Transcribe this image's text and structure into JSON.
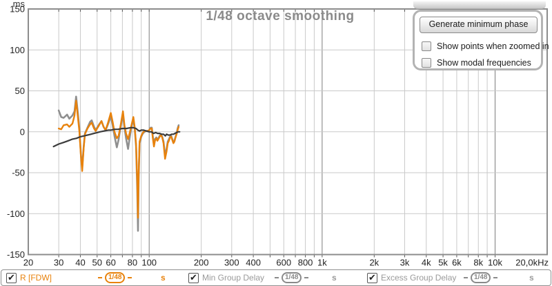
{
  "title": "1/48 octave smoothing",
  "panel": {
    "button_label": "Generate minimum phase",
    "checkboxes": [
      {
        "label": "Show points when zoomed in",
        "checked": false
      },
      {
        "label": "Show modal frequencies",
        "checked": false
      }
    ]
  },
  "legend": {
    "items": [
      {
        "label": "R [FDW]",
        "badge": "1/48",
        "suffix": "s",
        "color": "#E8820C",
        "checked": true
      },
      {
        "label": "Min Group Delay",
        "badge": "1/48",
        "suffix": "s",
        "color": "#9a9a9a",
        "checked": true
      },
      {
        "label": "Excess Group Delay",
        "badge": "1/48",
        "suffix": "s",
        "color": "#9a9a9a",
        "checked": true
      }
    ]
  },
  "chart_data": {
    "type": "line",
    "title": "1/48 octave smoothing",
    "x_axis": {
      "scale": "log",
      "unit": "Hz",
      "min": 20,
      "max": 20000,
      "tick_labels": [
        [
          20,
          "20"
        ],
        [
          30,
          "30"
        ],
        [
          40,
          "40"
        ],
        [
          50,
          "50"
        ],
        [
          60,
          "60"
        ],
        [
          80,
          "80"
        ],
        [
          100,
          "100"
        ],
        [
          200,
          "200"
        ],
        [
          300,
          "300"
        ],
        [
          400,
          "400"
        ],
        [
          600,
          "600"
        ],
        [
          800,
          "800"
        ],
        [
          1000,
          "1k"
        ],
        [
          2000,
          "2k"
        ],
        [
          3000,
          "3k"
        ],
        [
          4000,
          "4k"
        ],
        [
          5000,
          "5k"
        ],
        [
          6000,
          "6k"
        ],
        [
          8000,
          "8k"
        ],
        [
          10000,
          "10k"
        ],
        [
          20000,
          "20,0kHz"
        ]
      ]
    },
    "y_axis": {
      "unit": "ms",
      "min": -150,
      "max": 150,
      "step": 50,
      "tick_labels": [
        [
          150,
          "150"
        ],
        [
          100,
          "100"
        ],
        [
          50,
          "50"
        ],
        [
          0,
          "0"
        ],
        [
          -50,
          "-50"
        ],
        [
          -100,
          "-100"
        ],
        [
          -150,
          "-150"
        ]
      ]
    },
    "grid": {
      "minor_color": "#c9c9c9",
      "major_color": "#7b7b7b",
      "major_freqs": [
        100,
        1000,
        10000
      ],
      "border_color": "#8c8c8c"
    },
    "series": [
      {
        "name": "Excess Group Delay",
        "color": "#8f8f8f",
        "width": 2.6,
        "points": [
          [
            30,
            26
          ],
          [
            31,
            18
          ],
          [
            32,
            17
          ],
          [
            33.5,
            21
          ],
          [
            34.5,
            16
          ],
          [
            36,
            20
          ],
          [
            37,
            25
          ],
          [
            37.8,
            43
          ],
          [
            38.6,
            25
          ],
          [
            39.5,
            3
          ],
          [
            40.3,
            -28
          ],
          [
            41,
            -44
          ],
          [
            41.8,
            -18
          ],
          [
            42.5,
            -2
          ],
          [
            44,
            5
          ],
          [
            45.5,
            12
          ],
          [
            46.5,
            14
          ],
          [
            48,
            6
          ],
          [
            49,
            2
          ],
          [
            51,
            8
          ],
          [
            53,
            13
          ],
          [
            54.5,
            6
          ],
          [
            56,
            2
          ],
          [
            58,
            10
          ],
          [
            60,
            19
          ],
          [
            61.5,
            8
          ],
          [
            63,
            -5
          ],
          [
            65,
            -19
          ],
          [
            66.5,
            -10
          ],
          [
            68,
            3
          ],
          [
            70.5,
            21
          ],
          [
            72,
            5
          ],
          [
            73.5,
            -8
          ],
          [
            75.5,
            -21
          ],
          [
            77,
            -8
          ],
          [
            79,
            6
          ],
          [
            81,
            15
          ],
          [
            82.5,
            3
          ],
          [
            84,
            -18
          ],
          [
            85.3,
            -70
          ],
          [
            86.2,
            -121
          ],
          [
            87,
            -55
          ],
          [
            88,
            -14
          ],
          [
            90,
            -6
          ],
          [
            92,
            -2
          ],
          [
            94,
            0
          ],
          [
            96,
            1
          ],
          [
            98,
            1
          ],
          [
            100,
            2
          ],
          [
            102,
            5
          ],
          [
            103.5,
            5
          ],
          [
            105,
            -6
          ],
          [
            106.5,
            -14
          ],
          [
            108,
            -9
          ],
          [
            110,
            -7
          ],
          [
            111.5,
            -10
          ],
          [
            113,
            -8
          ],
          [
            115,
            -5
          ],
          [
            117,
            -3
          ],
          [
            119,
            -6
          ],
          [
            121,
            -12
          ],
          [
            123.5,
            -29
          ],
          [
            126,
            -21
          ],
          [
            128,
            -12
          ],
          [
            130,
            -9
          ],
          [
            132,
            -6
          ],
          [
            134,
            -5
          ],
          [
            136,
            -9
          ],
          [
            138,
            -13
          ],
          [
            140,
            -11
          ],
          [
            142,
            -6
          ],
          [
            144,
            -2
          ],
          [
            146,
            4
          ],
          [
            148,
            8
          ]
        ]
      },
      {
        "name": "R [FDW]",
        "color": "#E8820C",
        "width": 2.4,
        "points": [
          [
            30,
            4
          ],
          [
            31,
            3
          ],
          [
            32,
            8
          ],
          [
            33.5,
            9
          ],
          [
            34.5,
            6
          ],
          [
            36,
            10
          ],
          [
            37,
            20
          ],
          [
            37.8,
            38
          ],
          [
            38.6,
            20
          ],
          [
            39.5,
            0
          ],
          [
            40.3,
            -30
          ],
          [
            41,
            -48
          ],
          [
            41.8,
            -20
          ],
          [
            42.5,
            -3
          ],
          [
            44,
            4
          ],
          [
            45.5,
            9
          ],
          [
            46.5,
            11
          ],
          [
            48,
            4
          ],
          [
            49,
            1
          ],
          [
            51,
            7
          ],
          [
            53,
            13
          ],
          [
            54.5,
            6
          ],
          [
            56,
            2
          ],
          [
            58,
            12
          ],
          [
            60,
            23
          ],
          [
            61.5,
            12
          ],
          [
            63,
            0
          ],
          [
            65,
            -8
          ],
          [
            66.5,
            -5
          ],
          [
            68,
            5
          ],
          [
            70.5,
            25
          ],
          [
            72,
            8
          ],
          [
            73.5,
            -2
          ],
          [
            75.5,
            -9
          ],
          [
            77,
            -2
          ],
          [
            79,
            8
          ],
          [
            81,
            18
          ],
          [
            82.5,
            5
          ],
          [
            84,
            -15
          ],
          [
            85.3,
            -60
          ],
          [
            86.2,
            -105
          ],
          [
            87,
            -50
          ],
          [
            88,
            -12
          ],
          [
            90,
            -5
          ],
          [
            92,
            -1
          ],
          [
            94,
            1
          ],
          [
            96,
            1
          ],
          [
            98,
            1
          ],
          [
            100,
            2
          ],
          [
            102,
            4
          ],
          [
            103.5,
            4
          ],
          [
            105,
            -8
          ],
          [
            106.5,
            -18
          ],
          [
            108,
            -11
          ],
          [
            110,
            -8
          ],
          [
            111.5,
            -11
          ],
          [
            113,
            -9
          ],
          [
            115,
            -6
          ],
          [
            117,
            -4
          ],
          [
            119,
            -7
          ],
          [
            121,
            -14
          ],
          [
            123.5,
            -33
          ],
          [
            126,
            -24
          ],
          [
            128,
            -14
          ],
          [
            130,
            -11
          ],
          [
            132,
            -7
          ],
          [
            134,
            -6
          ],
          [
            136,
            -10
          ],
          [
            138,
            -14
          ],
          [
            140,
            -12
          ],
          [
            142,
            -7
          ],
          [
            144,
            -3
          ],
          [
            146,
            2
          ],
          [
            148,
            6
          ]
        ]
      },
      {
        "name": "Min Group Delay",
        "color": "#3b3b3b",
        "width": 2.2,
        "points": [
          [
            28,
            -18
          ],
          [
            30,
            -15
          ],
          [
            32,
            -13
          ],
          [
            34,
            -11
          ],
          [
            36,
            -9
          ],
          [
            38,
            -8
          ],
          [
            40,
            -6
          ],
          [
            42,
            -5
          ],
          [
            44,
            -4
          ],
          [
            46,
            -3
          ],
          [
            48,
            -2
          ],
          [
            50,
            -1
          ],
          [
            52,
            0
          ],
          [
            55,
            1
          ],
          [
            58,
            2
          ],
          [
            60,
            2
          ],
          [
            63,
            3
          ],
          [
            66,
            3
          ],
          [
            70,
            4
          ],
          [
            74,
            4
          ],
          [
            78,
            5
          ],
          [
            81,
            5
          ],
          [
            84,
            4
          ],
          [
            86,
            2
          ],
          [
            88,
            1
          ],
          [
            90,
            2
          ],
          [
            93,
            2
          ],
          [
            96,
            1
          ],
          [
            100,
            0
          ],
          [
            103,
            0
          ],
          [
            106,
            -2
          ],
          [
            109,
            -1
          ],
          [
            112,
            -2
          ],
          [
            115,
            -2
          ],
          [
            118,
            -3
          ],
          [
            121,
            -3
          ],
          [
            124,
            -5
          ],
          [
            126,
            -3
          ],
          [
            129,
            -4
          ],
          [
            132,
            -4
          ],
          [
            135,
            -3
          ],
          [
            138,
            -3
          ],
          [
            141,
            -2
          ],
          [
            144,
            -1
          ],
          [
            147,
            0
          ],
          [
            150,
            0
          ]
        ]
      }
    ],
    "legend_position": "bottom",
    "grid_on": true
  }
}
